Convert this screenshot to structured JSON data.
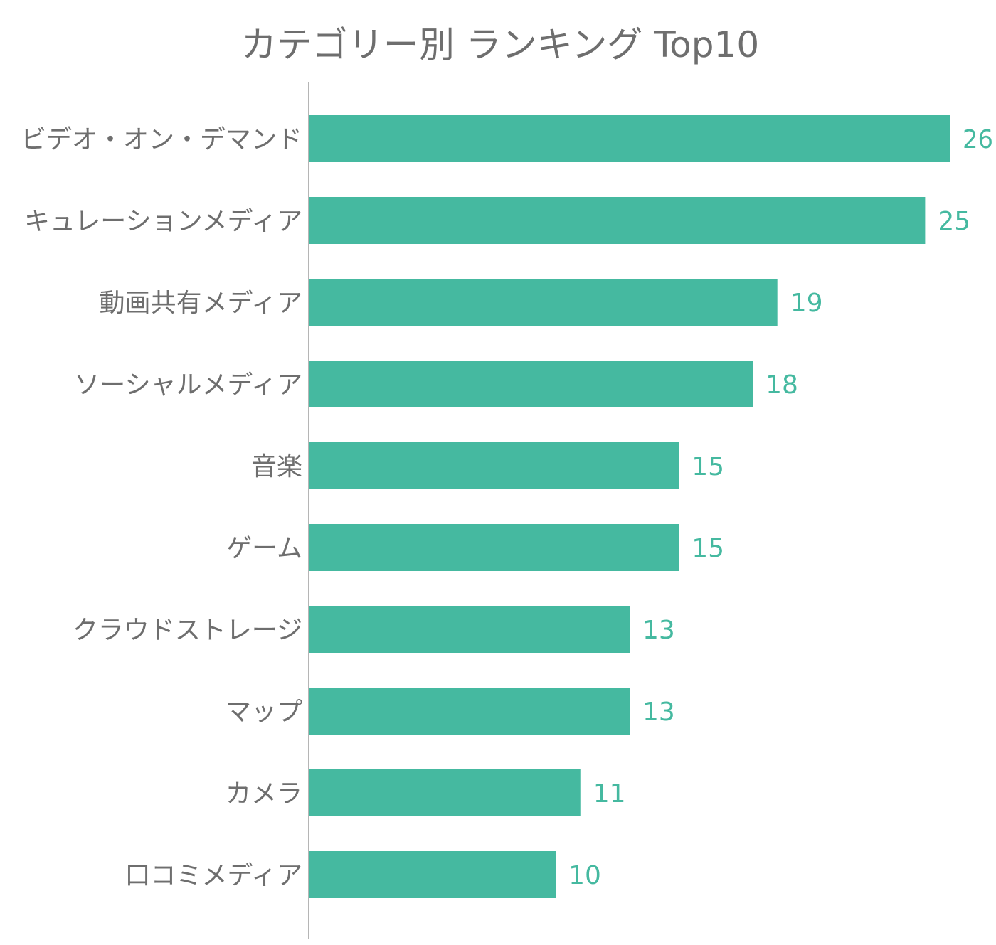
{
  "chart_data": {
    "type": "bar",
    "orientation": "horizontal",
    "title": "カテゴリー別 ランキング Top10",
    "xlabel": "",
    "ylabel": "",
    "categories": [
      "ビデオ・オン・デマンド",
      "キュレーションメディア",
      "動画共有メディア",
      "ソーシャルメディア",
      "音楽",
      "ゲーム",
      "クラウドストレージ",
      "マップ",
      "カメラ",
      "口コミメディア"
    ],
    "values": [
      26,
      25,
      19,
      18,
      15,
      15,
      13,
      13,
      11,
      10
    ],
    "xlim": [
      0,
      26
    ],
    "grid": false,
    "legend": "none",
    "data_labels": true,
    "colors": {
      "bar": "#45b9a0",
      "value_label": "#45b9a0",
      "text": "#6e6e6e",
      "axis": "#b5b5b5"
    }
  }
}
